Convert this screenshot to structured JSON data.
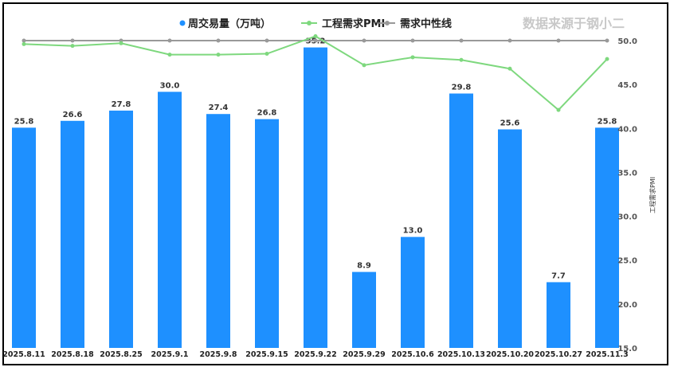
{
  "chart_data": {
    "type": "bar+line",
    "source_note": "数据来源于钢小二",
    "categories": [
      "2025.8.11",
      "2025.8.18",
      "2025.8.25",
      "2025.9.1",
      "2025.9.8",
      "2025.9.15",
      "2025.9.22",
      "2025.9.29",
      "2025.10.6",
      "2025.10.13",
      "2025.10.20",
      "2025.10.27",
      "2025.11.3"
    ],
    "series": [
      {
        "name": "周交易量（万吨）",
        "type": "bar",
        "axis": "left",
        "color": "#1e90ff",
        "values": [
          25.8,
          26.6,
          27.8,
          30.0,
          27.4,
          26.8,
          35.2,
          8.9,
          13.0,
          29.8,
          25.6,
          7.7,
          25.8
        ],
        "labels": [
          "25.8",
          "26.6",
          "27.8",
          "30.0",
          "27.4",
          "26.8",
          "35.2",
          "8.9",
          "13.0",
          "29.8",
          "25.6",
          "7.7",
          "25.8"
        ]
      },
      {
        "name": "工程需求PMI",
        "type": "line",
        "axis": "right",
        "color": "#7ed87e",
        "values": [
          49.6,
          49.4,
          49.7,
          48.4,
          48.4,
          48.5,
          50.5,
          47.2,
          48.1,
          47.8,
          46.8,
          42.1,
          47.9
        ]
      },
      {
        "name": "需求中性线",
        "type": "line",
        "axis": "right",
        "color": "#999999",
        "values": [
          50,
          50,
          50,
          50,
          50,
          50,
          50,
          50,
          50,
          50,
          50,
          50,
          50
        ]
      }
    ],
    "left_ylim": [
      0,
      36
    ],
    "right_axis": {
      "label": "工程需求PMI",
      "ylim": [
        15,
        50
      ],
      "ticks": [
        "15.0",
        "20.0",
        "25.0",
        "30.0",
        "35.0",
        "40.0",
        "45.0",
        "50.0"
      ]
    },
    "legend_position": "top-center"
  }
}
